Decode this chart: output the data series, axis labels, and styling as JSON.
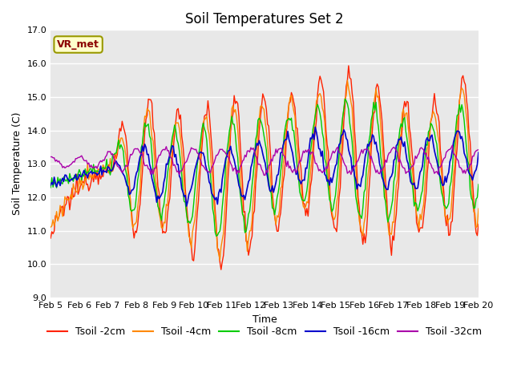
{
  "title": "Soil Temperatures Set 2",
  "xlabel": "Time",
  "ylabel": "Soil Temperature (C)",
  "ylim": [
    9.0,
    17.0
  ],
  "yticks": [
    9.0,
    10.0,
    11.0,
    12.0,
    13.0,
    14.0,
    15.0,
    16.0,
    17.0
  ],
  "background_color": "#e8e8e8",
  "legend_label": "VR_met",
  "series_colors": [
    "#ff2200",
    "#ff8800",
    "#00cc00",
    "#0000cc",
    "#aa00aa"
  ],
  "series_labels": [
    "Tsoil -2cm",
    "Tsoil -4cm",
    "Tsoil -8cm",
    "Tsoil -16cm",
    "Tsoil -32cm"
  ],
  "series_lw": [
    1.0,
    1.0,
    1.0,
    1.2,
    1.0
  ],
  "xtick_labels": [
    "Feb 5",
    "Feb 6",
    "Feb 7",
    "Feb 8",
    "Feb 9",
    "Feb 10",
    "Feb 11",
    "Feb 12",
    "Feb 13",
    "Feb 14",
    "Feb 15",
    "Feb 16",
    "Feb 17",
    "Feb 18",
    "Feb 19",
    "Feb 20"
  ],
  "title_fontsize": 12,
  "axis_fontsize": 9,
  "tick_fontsize": 8,
  "legend_fontsize": 9
}
